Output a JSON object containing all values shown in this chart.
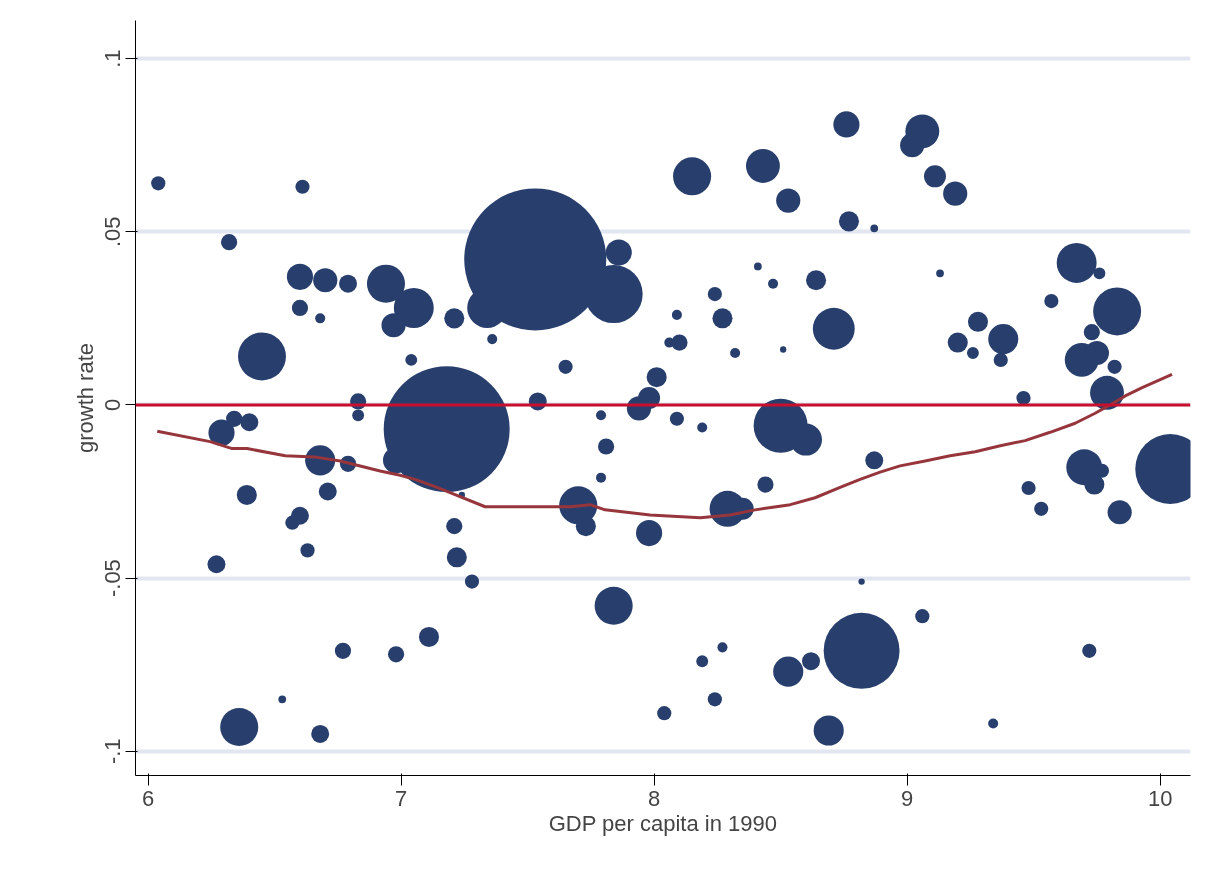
{
  "chart_data": {
    "type": "bubble",
    "xlabel": "GDP per capita in 1990",
    "ylabel": "growth rate",
    "xlim": [
      5.95,
      10.12
    ],
    "ylim": [
      -0.107,
      0.111
    ],
    "xticks": [
      6,
      7,
      8,
      9,
      10
    ],
    "yticks": [
      {
        "value": -0.1,
        "label": "-.1"
      },
      {
        "value": -0.05,
        "label": "-.05"
      },
      {
        "value": 0,
        "label": "0"
      },
      {
        "value": 0.05,
        "label": ".05"
      },
      {
        "value": 0.1,
        "label": ".1"
      }
    ],
    "grid": "y",
    "ref_lines": [
      {
        "axis": "y",
        "value": 0,
        "color": "#c8102e"
      }
    ],
    "series": [
      {
        "color": "#283f6e",
        "x": [
          6.04,
          6.61,
          6.32,
          6.29,
          6.34,
          6.4,
          6.39,
          6.45,
          6.6,
          6.7,
          6.79,
          6.6,
          6.68,
          6.94,
          7.05,
          6.97,
          7.04,
          6.83,
          6.83,
          6.68,
          6.79,
          6.71,
          6.6,
          6.57,
          6.27,
          6.63,
          6.77,
          6.98,
          7.11,
          6.53,
          6.36,
          6.68,
          6.98,
          7.18,
          7.21,
          7.24,
          7.21,
          7.22,
          7.28,
          7.36,
          7.53,
          7.34,
          7.86,
          7.84,
          7.65,
          7.54,
          8.15,
          8.43,
          8.53,
          8.76,
          8.77,
          8.41,
          8.47,
          8.64,
          8.24,
          8.27,
          8.09,
          8.1,
          8.06,
          8.32,
          8.51,
          8.71,
          8.01,
          7.98,
          7.94,
          9.06,
          9.02,
          9.11,
          9.19,
          8.87,
          9.13,
          9.67,
          9.76,
          9.57,
          9.83,
          9.28,
          9.38,
          9.2,
          9.26,
          9.37,
          9.73,
          9.69,
          9.75,
          9.82,
          9.79,
          9.46,
          7.79,
          7.81,
          7.79,
          7.7,
          7.73,
          7.98,
          8.09,
          8.19,
          8.5,
          8.6,
          8.44,
          8.29,
          8.35,
          7.84,
          8.19,
          8.27,
          8.24,
          8.04,
          8.53,
          8.62,
          8.69,
          8.82,
          8.87,
          8.82,
          9.06,
          9.72,
          9.34,
          9.48,
          9.53,
          9.7,
          9.74,
          9.77,
          9.84,
          10.04
        ],
        "values": [
          0.064,
          0.063,
          0.047,
          -0.008,
          -0.004,
          -0.005,
          -0.026,
          0.014,
          0.037,
          0.036,
          0.035,
          0.028,
          0.025,
          0.035,
          0.028,
          0.023,
          0.013,
          0.001,
          -0.003,
          -0.016,
          -0.017,
          -0.025,
          -0.032,
          -0.034,
          -0.046,
          -0.042,
          -0.071,
          -0.072,
          -0.067,
          -0.085,
          -0.093,
          -0.095,
          -0.016,
          -0.007,
          0.025,
          -0.026,
          -0.035,
          -0.044,
          -0.051,
          0.019,
          0.042,
          0.028,
          0.044,
          0.032,
          0.011,
          0.001,
          0.066,
          0.069,
          0.059,
          0.081,
          0.053,
          0.04,
          0.035,
          0.036,
          0.032,
          0.025,
          0.026,
          0.018,
          0.018,
          0.015,
          0.016,
          0.022,
          0.008,
          0.002,
          -0.001,
          0.079,
          0.075,
          0.066,
          0.061,
          0.051,
          0.038,
          0.041,
          0.038,
          0.03,
          0.027,
          0.024,
          0.019,
          0.018,
          0.015,
          0.013,
          0.021,
          0.013,
          0.015,
          0.011,
          0.0035,
          0.002,
          -0.003,
          -0.012,
          -0.021,
          -0.029,
          -0.035,
          -0.037,
          -0.004,
          -0.0065,
          -0.006,
          -0.01,
          -0.023,
          -0.03,
          -0.03,
          -0.058,
          -0.074,
          -0.07,
          -0.085,
          -0.089,
          -0.077,
          -0.074,
          -0.094,
          -0.071,
          -0.016,
          -0.051,
          -0.061,
          -0.071,
          -0.092,
          -0.024,
          -0.03,
          -0.018,
          -0.023,
          -0.019,
          -0.031,
          -0.0185
        ],
        "sizes": [
          0.01,
          0.01,
          0.013,
          0.034,
          0.013,
          0.016,
          0.02,
          0.114,
          0.034,
          0.029,
          0.016,
          0.013,
          0.005,
          0.072,
          0.079,
          0.029,
          0.007,
          0.013,
          0.007,
          0.045,
          0.013,
          0.016,
          0.016,
          0.01,
          0.016,
          0.01,
          0.013,
          0.013,
          0.02,
          0.003,
          0.072,
          0.016,
          0.034,
          0.787,
          0.02,
          0.002,
          0.013,
          0.02,
          0.01,
          0.005,
          1,
          0.079,
          0.034,
          0.167,
          0.01,
          0.016,
          0.072,
          0.057,
          0.029,
          0.034,
          0.02,
          0.003,
          0.005,
          0.02,
          0.01,
          0.02,
          0.005,
          0.013,
          0.005,
          0.005,
          0.002,
          0.087,
          0.02,
          0.024,
          0.029,
          0.057,
          0.029,
          0.024,
          0.029,
          0.003,
          0.003,
          0.079,
          0.007,
          0.01,
          0.114,
          0.02,
          0.045,
          0.02,
          0.007,
          0.01,
          0.013,
          0.057,
          0.029,
          0.01,
          0.057,
          0.01,
          0.005,
          0.013,
          0.005,
          0.072,
          0.02,
          0.034,
          0.01,
          0.005,
          0.145,
          0.051,
          0.013,
          0.064,
          0.024,
          0.072,
          0.007,
          0.005,
          0.01,
          0.01,
          0.045,
          0.016,
          0.045,
          0.286,
          0.016,
          0.002,
          0.01,
          0.01,
          0.005,
          0.01,
          0.01,
          0.064,
          0.02,
          0.01,
          0.029,
          0.243
        ]
      },
      {
        "type": "line",
        "color": "#96363c",
        "x": [
          6.036,
          6.245,
          6.332,
          6.391,
          6.542,
          6.656,
          6.759,
          6.917,
          6.996,
          7.055,
          7.142,
          7.213,
          7.332,
          7.47,
          7.668,
          7.747,
          7.806,
          7.984,
          8.182,
          8.3,
          8.399,
          8.538,
          8.636,
          8.735,
          8.814,
          8.893,
          8.972,
          9.071,
          9.17,
          9.269,
          9.368,
          9.466,
          9.565,
          9.664,
          9.743,
          9.802,
          9.862,
          9.929,
          10.047
        ],
        "values": [
          -0.0076,
          -0.0106,
          -0.0126,
          -0.0126,
          -0.0147,
          -0.015,
          -0.0162,
          -0.0191,
          -0.0203,
          -0.0215,
          -0.0238,
          -0.0259,
          -0.0294,
          -0.0294,
          -0.0294,
          -0.0288,
          -0.0303,
          -0.0318,
          -0.0326,
          -0.0318,
          -0.0303,
          -0.0288,
          -0.0268,
          -0.0238,
          -0.0215,
          -0.0194,
          -0.0176,
          -0.0162,
          -0.0147,
          -0.0135,
          -0.0118,
          -0.0103,
          -0.0079,
          -0.0053,
          -0.0024,
          0,
          0.0026,
          0.005,
          0.0088
        ]
      }
    ]
  }
}
